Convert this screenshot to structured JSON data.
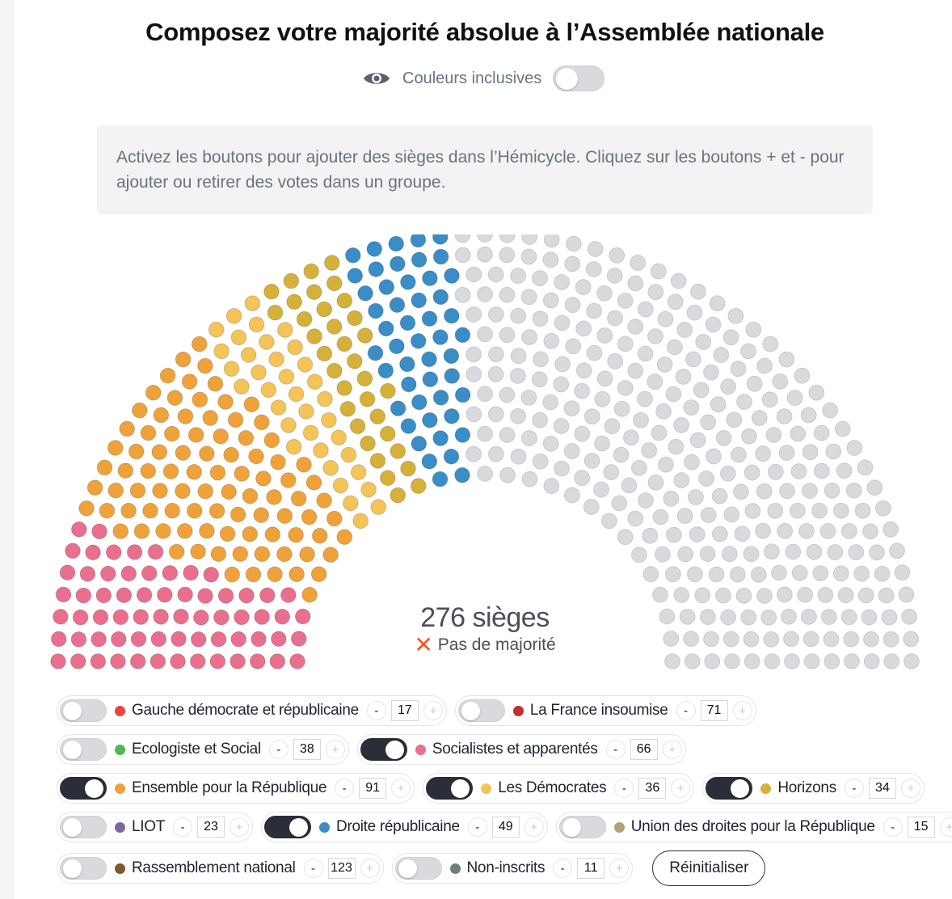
{
  "page": {
    "title": "Composez votre majorité absolue à l’Assemblée nationale",
    "inclusive_label": "Couleurs inclusives",
    "inclusive_on": false,
    "instructions": "Activez les boutons pour ajouter des sièges dans l’Hémicycle. Cliquez sur les boutons + et - pour ajouter ou retirer des votes dans un groupe.",
    "seats_label": "276 sièges",
    "majority_status": "Pas de majorité",
    "majority_icon": "cross-icon",
    "reset_label": "Réinitialiser",
    "minus_symbol": "-",
    "plus_symbol": "+"
  },
  "chart_data": {
    "type": "hemicycle",
    "total_seats": 577,
    "selected_seats": 276,
    "unselected_color": "#d9dadd",
    "order": [
      "Socialistes et apparentés",
      "Ensemble pour la République",
      "Les Démocrates",
      "Horizons",
      "Droite républicaine"
    ],
    "series": [
      {
        "name": "Gauche démocrate et républicaine",
        "seats": 17,
        "color": "#e8453c",
        "active": false
      },
      {
        "name": "La France insoumise",
        "seats": 71,
        "color": "#c0302e",
        "active": false
      },
      {
        "name": "Ecologiste et Social",
        "seats": 38,
        "color": "#4fb84f",
        "active": false
      },
      {
        "name": "Socialistes et apparentés",
        "seats": 66,
        "color": "#ea6f8e",
        "active": true
      },
      {
        "name": "Ensemble pour la République",
        "seats": 91,
        "color": "#f0a23a",
        "active": true
      },
      {
        "name": "Les Démocrates",
        "seats": 36,
        "color": "#f5c458",
        "active": true
      },
      {
        "name": "Horizons",
        "seats": 34,
        "color": "#d6b13a",
        "active": true
      },
      {
        "name": "LIOT",
        "seats": 23,
        "color": "#7a6a9a",
        "active": false
      },
      {
        "name": "Droite républicaine",
        "seats": 49,
        "color": "#3a8dc6",
        "active": true
      },
      {
        "name": "Union des droites pour la République",
        "seats": 15,
        "color": "#b3a07a",
        "active": false
      },
      {
        "name": "Rassemblement national",
        "seats": 123,
        "color": "#7a5a2e",
        "active": false
      },
      {
        "name": "Non-inscrits",
        "seats": 11,
        "color": "#6e7f76",
        "active": false
      }
    ]
  },
  "rows": [
    [
      0,
      1
    ],
    [
      2,
      3
    ],
    [
      4,
      5,
      6
    ],
    [
      7,
      8,
      9
    ],
    [
      10,
      11
    ]
  ]
}
